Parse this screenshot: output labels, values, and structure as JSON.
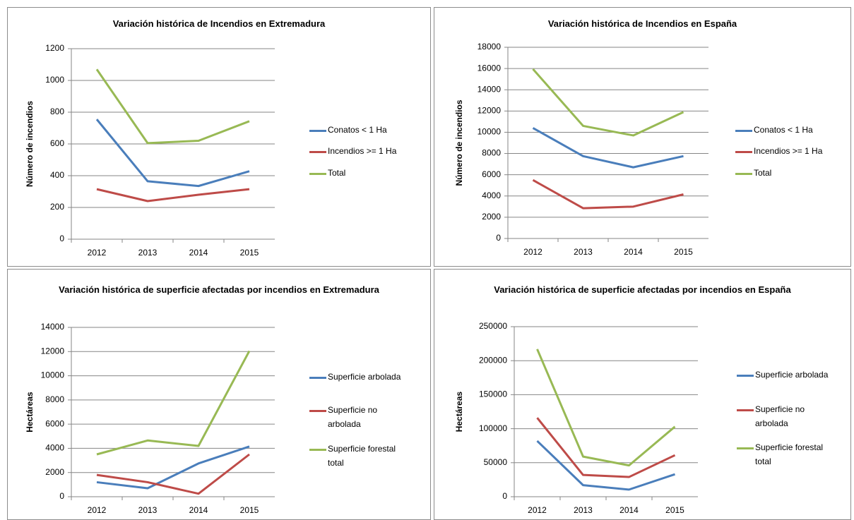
{
  "chart_data": [
    {
      "type": "line",
      "title": "Variación histórica de Incendios en Extremadura",
      "y_label": "Número de incendios",
      "categories": [
        "2012",
        "2013",
        "2014",
        "2015"
      ],
      "series": [
        {
          "name": "Conatos < 1 Ha",
          "color": "#4a7ebb",
          "values": [
            755,
            365,
            335,
            428
          ]
        },
        {
          "name": "Incendios >= 1 Ha",
          "color": "#be4b48",
          "values": [
            315,
            240,
            280,
            315
          ]
        },
        {
          "name": "Total",
          "color": "#98b954",
          "values": [
            1070,
            605,
            620,
            743
          ]
        }
      ],
      "ylim": [
        0,
        1200
      ],
      "yticks": [
        0,
        200,
        400,
        600,
        800,
        1000,
        1200
      ],
      "grid": true,
      "legend": "right"
    },
    {
      "type": "line",
      "title": "Variación histórica de Incendios en España",
      "y_label": "Número de incendios",
      "categories": [
        "2012",
        "2013",
        "2014",
        "2015"
      ],
      "series": [
        {
          "name": "Conatos < 1 Ha",
          "color": "#4a7ebb",
          "values": [
            10400,
            7750,
            6700,
            7750
          ]
        },
        {
          "name": "Incendios >= 1 Ha",
          "color": "#be4b48",
          "values": [
            5500,
            2850,
            3000,
            4150
          ]
        },
        {
          "name": "Total",
          "color": "#98b954",
          "values": [
            15950,
            10600,
            9700,
            11900
          ]
        }
      ],
      "ylim": [
        0,
        18000
      ],
      "yticks": [
        0,
        2000,
        4000,
        6000,
        8000,
        10000,
        12000,
        14000,
        16000,
        18000
      ],
      "grid": true,
      "legend": "right"
    },
    {
      "type": "line",
      "title": "Variación histórica de superficie afectadas por incendios en Extremadura",
      "y_label": "Hectáreas",
      "categories": [
        "2012",
        "2013",
        "2014",
        "2015"
      ],
      "series": [
        {
          "name": "Superficie arbolada",
          "color": "#4a7ebb",
          "values": [
            1200,
            700,
            2750,
            4150
          ]
        },
        {
          "name": "Superficie no arbolada",
          "color": "#be4b48",
          "values": [
            1800,
            1200,
            250,
            3500
          ]
        },
        {
          "name": "Superficie forestal total",
          "color": "#98b954",
          "values": [
            3500,
            4650,
            4200,
            12050
          ]
        }
      ],
      "ylim": [
        0,
        14000
      ],
      "yticks": [
        0,
        2000,
        4000,
        6000,
        8000,
        10000,
        12000,
        14000
      ],
      "grid": true,
      "legend": "right"
    },
    {
      "type": "line",
      "title": "Variación histórica de superficie afectadas por incendios en España",
      "y_label": "Hectáreas",
      "categories": [
        "2012",
        "2013",
        "2014",
        "2015"
      ],
      "series": [
        {
          "name": "Superficie arbolada",
          "color": "#4a7ebb",
          "values": [
            82000,
            17000,
            10500,
            33000
          ]
        },
        {
          "name": "Superficie no arbolada",
          "color": "#be4b48",
          "values": [
            116000,
            32000,
            29000,
            61000
          ]
        },
        {
          "name": "Superficie forestal total",
          "color": "#98b954",
          "values": [
            217000,
            59000,
            46000,
            103000
          ]
        }
      ],
      "ylim": [
        0,
        250000
      ],
      "yticks": [
        0,
        50000,
        100000,
        150000,
        200000,
        250000
      ],
      "grid": true,
      "legend": "right"
    }
  ]
}
